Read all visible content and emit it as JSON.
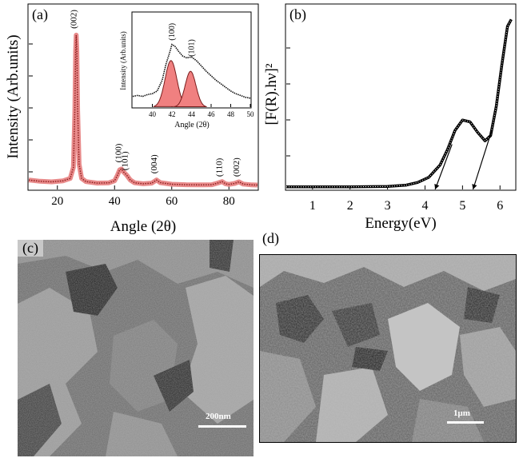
{
  "panels": {
    "a": {
      "letter": "(a)"
    },
    "b": {
      "letter": "(b)"
    },
    "c": {
      "letter": "(c)",
      "scale": "200nm"
    },
    "d": {
      "letter": "(d)",
      "scale": "1μm"
    }
  },
  "chart_data": [
    {
      "panel": "a",
      "type": "line",
      "xlabel": "Angle (2θ)",
      "ylabel": "Intensity (Arb.units)",
      "xlim": [
        10,
        90
      ],
      "ylim": [
        0,
        100
      ],
      "xticks": [
        20,
        40,
        60,
        80
      ],
      "grid": false,
      "colors": {
        "fit": "#e88a8a",
        "data": "#8b1a1a"
      },
      "peaks": [
        {
          "label": "(002)",
          "x": 26.6,
          "y": 98
        },
        {
          "label": "(100)",
          "x": 42.3,
          "y": 13
        },
        {
          "label": "(101)",
          "x": 44.5,
          "y": 8
        },
        {
          "label": "(004)",
          "x": 54.7,
          "y": 6
        },
        {
          "label": "(110)",
          "x": 77.6,
          "y": 4
        },
        {
          "label": "(002)",
          "x": 83.5,
          "y": 4
        }
      ],
      "series": [
        {
          "values": [
            [
              10,
              6
            ],
            [
              14,
              5.2
            ],
            [
              18,
              4.8
            ],
            [
              22,
              5.5
            ],
            [
              24.5,
              7
            ],
            [
              25.6,
              14
            ],
            [
              26.1,
              50
            ],
            [
              26.4,
              88
            ],
            [
              26.6,
              98
            ],
            [
              26.8,
              88
            ],
            [
              27.1,
              50
            ],
            [
              27.6,
              16
            ],
            [
              28.5,
              7
            ],
            [
              30,
              5
            ],
            [
              34,
              4
            ],
            [
              38,
              4.2
            ],
            [
              40,
              5.5
            ],
            [
              41,
              9
            ],
            [
              41.8,
              12.5
            ],
            [
              42.4,
              13
            ],
            [
              43.2,
              11
            ],
            [
              44.3,
              9
            ],
            [
              45.5,
              6
            ],
            [
              47,
              4.2
            ],
            [
              50,
              3.6
            ],
            [
              53,
              4
            ],
            [
              54.7,
              6
            ],
            [
              56,
              4.3
            ],
            [
              60,
              3.3
            ],
            [
              65,
              3
            ],
            [
              70,
              2.9
            ],
            [
              74,
              3
            ],
            [
              76,
              4
            ],
            [
              77.6,
              5
            ],
            [
              78.8,
              3.6
            ],
            [
              80,
              3.2
            ],
            [
              82,
              3.8
            ],
            [
              83.5,
              4.8
            ],
            [
              85,
              3.4
            ],
            [
              88,
              2.9
            ],
            [
              90,
              2.8
            ]
          ]
        }
      ]
    },
    {
      "panel": "a-inset",
      "type": "line",
      "xlabel": "Angle (2θ)",
      "ylabel": "Intensity (Arb.units)",
      "xlim": [
        38,
        50
      ],
      "ylim": [
        0,
        100
      ],
      "xticks": [
        40,
        42,
        44,
        46,
        48,
        50
      ],
      "peaks": [
        {
          "label": "(100)",
          "x": 42.0,
          "y": 70
        },
        {
          "label": "(101)",
          "x": 44.0,
          "y": 52
        }
      ],
      "series": [
        {
          "values": [
            [
              38,
              12
            ],
            [
              38.5,
              13
            ],
            [
              39,
              12
            ],
            [
              39.5,
              14
            ],
            [
              40,
              15
            ],
            [
              40.5,
              18
            ],
            [
              41,
              30
            ],
            [
              41.4,
              48
            ],
            [
              41.8,
              62
            ],
            [
              42,
              70
            ],
            [
              42.3,
              68
            ],
            [
              42.7,
              62
            ],
            [
              43.1,
              57
            ],
            [
              43.5,
              55
            ],
            [
              44,
              56
            ],
            [
              44.5,
              52
            ],
            [
              45,
              46
            ],
            [
              45.5,
              40
            ],
            [
              46,
              35
            ],
            [
              46.5,
              30
            ],
            [
              47,
              26
            ],
            [
              47.5,
              22
            ],
            [
              48,
              18
            ],
            [
              48.5,
              15
            ],
            [
              49,
              13
            ],
            [
              49.5,
              11
            ],
            [
              50,
              10
            ]
          ]
        }
      ],
      "components": [
        {
          "center": 41.9,
          "amplitude": 52,
          "width": 0.6
        },
        {
          "center": 43.9,
          "amplitude": 40,
          "width": 0.55
        }
      ]
    },
    {
      "panel": "b",
      "type": "line",
      "xlabel": "Energy(eV)",
      "ylabel": "[F(R).hν]²",
      "xlim": [
        0.3,
        6.4
      ],
      "ylim": [
        0,
        100
      ],
      "xticks": [
        1,
        2,
        3,
        4,
        5,
        6
      ],
      "grid": false,
      "series": [
        {
          "values": [
            [
              0.3,
              1.5
            ],
            [
              1,
              1.5
            ],
            [
              2,
              1.5
            ],
            [
              3,
              1.7
            ],
            [
              3.5,
              2.5
            ],
            [
              3.8,
              4
            ],
            [
              4.1,
              7
            ],
            [
              4.4,
              14
            ],
            [
              4.6,
              23
            ],
            [
              4.8,
              34
            ],
            [
              5.0,
              40
            ],
            [
              5.2,
              39
            ],
            [
              5.4,
              33
            ],
            [
              5.6,
              28
            ],
            [
              5.75,
              31
            ],
            [
              5.9,
              48
            ],
            [
              6.05,
              72
            ],
            [
              6.2,
              94
            ],
            [
              6.3,
              98
            ]
          ]
        }
      ],
      "tangents": [
        {
          "from": [
            4.72,
            26
          ],
          "to": [
            4.27,
            0
          ]
        },
        {
          "from": [
            5.78,
            34
          ],
          "to": [
            5.28,
            0
          ]
        }
      ]
    }
  ]
}
